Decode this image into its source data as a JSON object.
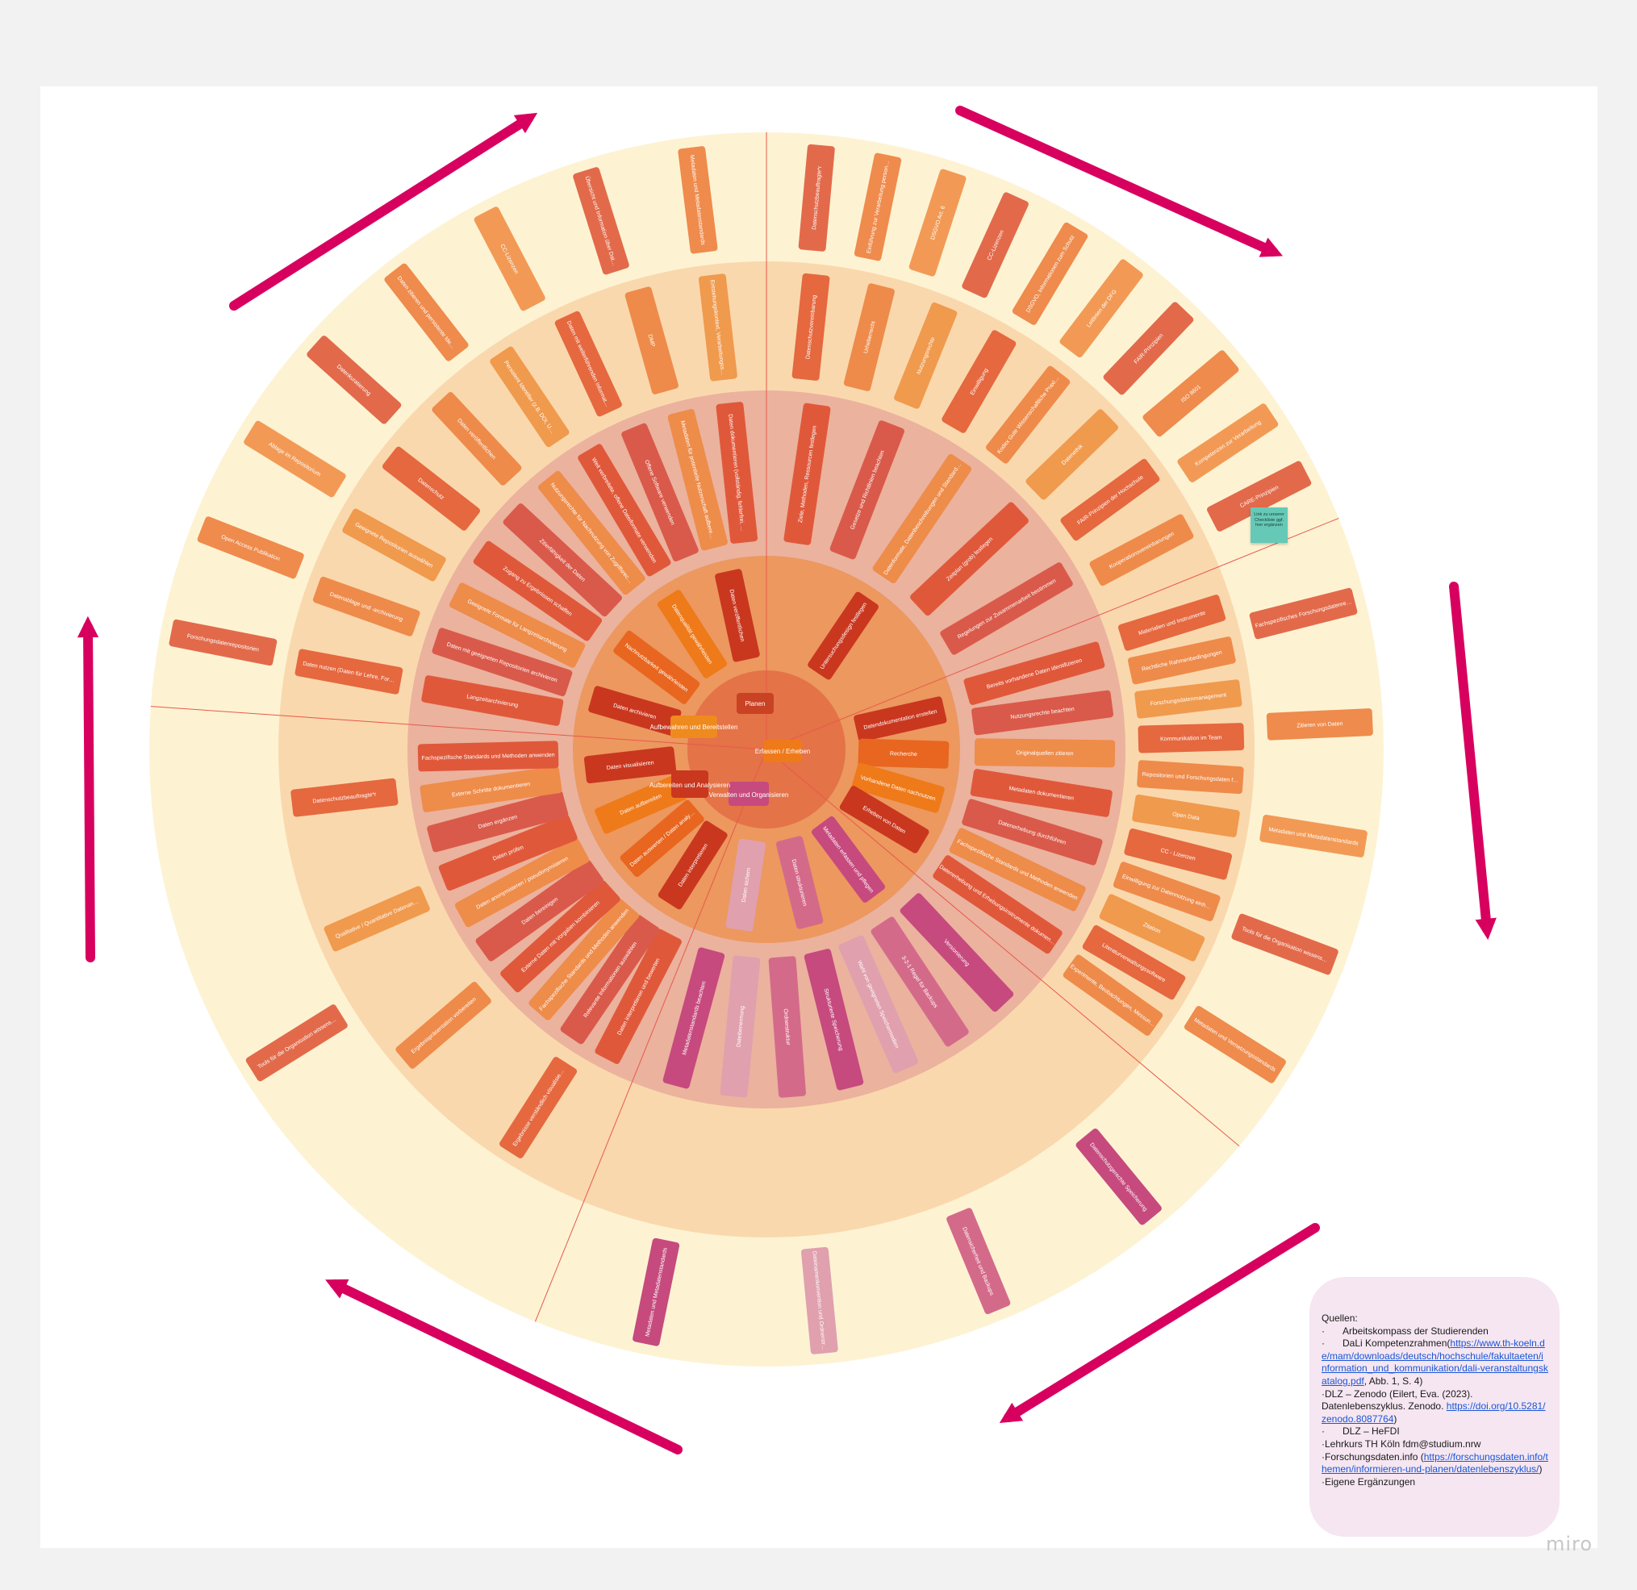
{
  "app": "miro",
  "colors": {
    "ring_outer": "#fdf3d3",
    "ring_2": "#fad8ad",
    "ring_3": "#ebb29e",
    "ring_4": "#ec985f",
    "hub": "#e47348",
    "arrow": "#d8005f",
    "divider": "#e8594a"
  },
  "center": {
    "plan": "Planen",
    "collect": "Erfassen / Erheben",
    "manage": "Verwalten und Organisieren",
    "analyze": "Aufbereiten und Analysieren",
    "archive": "Aufbewahren und Bereitstellen"
  },
  "segments": [
    {
      "phase": "plan",
      "ring4": [
        "Untersuchungsdesign festlegen"
      ],
      "ring3": [
        "Ziele, Methoden, Ressourcen festlegen",
        "Gesetze und Richtlinien beachten",
        "Datenformate, Datenbeschreibungen und Standards festlegen",
        "Zeitplan (grob) festlegen",
        "Regelungen zur Zusammenarbeit bestimmen"
      ],
      "ring2": [
        "Datenschutzvereinbarung",
        "Urheberrecht",
        "Nutzungsrechte",
        "Einwilligung",
        "Kodex Gute Wissenschaftliche Praxis (DFG)",
        "Datenethik",
        "FAIR-Prinzipien der Hochschule",
        "Kooperationsvereinbarungen"
      ],
      "ring1": [
        "Datenschutzbeauftragte*r",
        "Einführung zur Verarbeitung personenbezogener Daten",
        "DSGVO Art. 6",
        "CC-Lizenzen",
        "DSGVO, Informationen zum Schutz",
        "Leitlinien der DFG",
        "FAIR-Prinzipien",
        "ISO 8601",
        "Kompetenzen zur Verarbeitung",
        "CARE-Prinzipien"
      ]
    },
    {
      "phase": "collect",
      "ring4": [
        "Datendokumentation erstellen",
        "Recherche",
        "Vorhandene Daten nachnutzen",
        "Erheben von Daten"
      ],
      "ring3": [
        "Bereits vorhandene Daten identifizieren",
        "Nutzungsrechte beachten",
        "Originalquellen zitieren",
        "Metadaten dokumentieren",
        "Datenerhebung durchführen",
        "Fachspezifische Standards und Methoden anwenden",
        "Datenerhebung und Erhebungsinstrumente dokumentieren"
      ],
      "ring2": [
        "Materialien und Instrumente",
        "Rechtliche Rahmenbedingungen",
        "Forschungsdatenmanagement",
        "Kommunikation im Team",
        "Repositorien und Forschungsdaten finden",
        "Open Data",
        "CC - Lizenzen",
        "Einwilligung zur Datennutzung einholen",
        "Zitation",
        "Literaturverwaltungssoftware",
        "Experimente, Beobachtungen, Messungen, Simulationen etc."
      ],
      "ring1": [
        "Fachspezifisches Forschungsdatenrepositorium",
        "Zitieren von Daten",
        "Metadaten und Metadatenstandards",
        "Tools für die Organisation wissenschaftlicher Datenerhebung",
        "Metadaten und Vernetzungsstandards"
      ]
    },
    {
      "phase": "manage",
      "ring4": [
        "Metadaten erfassen und pflegen",
        "Daten strukturieren",
        "Daten sichern"
      ],
      "ring3": [
        "Versionierung",
        "3-2-1 Regel für Backups",
        "Wahl von geeigneten Speichermedien",
        "Strukturierte Speicherung",
        "Ordnerstruktur",
        "Dateibenennung",
        "Metadatenstandards beachten"
      ],
      "ring2": [],
      "ring1": [
        "Datenschutzgerechte Speicherung",
        "Datensicherheit und Backups",
        "Dateinamenkonvention und Ordnerstruktur",
        "Metadaten und Metadatenstandards"
      ]
    },
    {
      "phase": "analyze",
      "ring4": [
        "Daten interpretieren",
        "Daten auswerten / Daten analysieren",
        "Daten aufbereiten",
        "Daten visualisieren"
      ],
      "ring3": [
        "Daten interpretieren und bewerten",
        "Relevante Informationen auswählen",
        "Fachspezifische Standards und Methoden anwenden",
        "Externe Daten mit Vorgaben kombinieren",
        "Daten bereinigen",
        "Daten anonymisieren / pseudonymisieren",
        "Daten prüfen",
        "Daten ergänzen",
        "Externe Schritte dokumentieren",
        "Fachspezifische Standards und Methoden anwenden"
      ],
      "ring2": [
        "Ergebnisse verständlich visualisieren",
        "Ergebnispräsentation vorbereiten",
        "Qualitative / Quantitative Datenanalyse / Mixed Methods",
        "Datenschutzbeauftragte*r"
      ],
      "ring1": [
        "Tools für die Organisation wissenschaftlicher Datenerhebung"
      ]
    },
    {
      "phase": "archive",
      "ring4": [
        "Daten archivieren",
        "Nachnutzbarkeit gewährleisten",
        "Datenqualität gewährleisten",
        "Daten veröffentlichen"
      ],
      "ring3": [
        "Langzeitarchivierung",
        "Daten mit geeigneten Repositorien archivieren",
        "Geeignete Formate für Langzeitarchivierung",
        "Zugang zu Ergebnissen schaffen",
        "Zitierfähigkeit der Daten",
        "Nutzungsrechte für Nachnutzung von Zugriffsrechten",
        "Weit verbreitete, offene Dateiformate verwenden",
        "Offene Software verwenden",
        "Metadaten für potentielle Nutzerschaft aufbereiten",
        "Daten dokumentieren (vollständig, fehlerfrei, beständig, konsistent)"
      ],
      "ring2": [
        "Daten nutzen (Daten für Lehre, Forschung)",
        "Datenablage und -archivierung",
        "Geeignete Repositorien auswählen",
        "Datenschutz",
        "Daten veröffentlichen",
        "Persistent Identifier (z.B. DOI, URN) vergeben",
        "Daten mit weiterführenden Informationen verlinken",
        "DMP",
        "Entstehungskontext, Verarbeitungsschritte, Analyseprozess, Methoden, Instrumente, Software"
      ],
      "ring1": [
        "Forschungsdatenrepositorien",
        "Open Access Publikation",
        "Ablage im Repositorium",
        "Datenkuratierung",
        "Daten zitieren und persistente Identifikatoren",
        "CC-Lizenzen",
        "Übersicht und Information über Dateiformate",
        "Metadaten und Metadatenstandards"
      ]
    }
  ],
  "sticky_note": "Link zu unserer Checkliste ggf. hier ergänzen",
  "sources": {
    "heading": "Quellen:",
    "bullet": "·",
    "items": [
      {
        "text": "Arbeitskompass der Studierenden"
      },
      {
        "text": "DaLi Kompetenzrahmen(",
        "link": "https://www.th-koeln.de/mam/downloads/deutsch/hochschule/fakultaeten/information_und_kommunikation/dali-veranstaltungskatalog.pdf",
        "after": ", Abb. 1, S. 4)"
      },
      {
        "text": "DLZ – Zenodo (Eilert, Eva. (2023). Datenlebenszyklus. Zenodo. ",
        "link": "https://doi.org/10.5281/zenodo.8087764",
        "after": ")"
      },
      {
        "text": "DLZ – HeFDI"
      },
      {
        "text": "Lehrkurs TH Köln fdm@studium.nrw"
      },
      {
        "text": "Forschungsdaten.info (",
        "link": "https://forschungsdaten.info/themen/informieren-und-planen/datenlebenszyklus/",
        "after": ")"
      },
      {
        "text": "Eigene Ergänzungen"
      }
    ]
  }
}
